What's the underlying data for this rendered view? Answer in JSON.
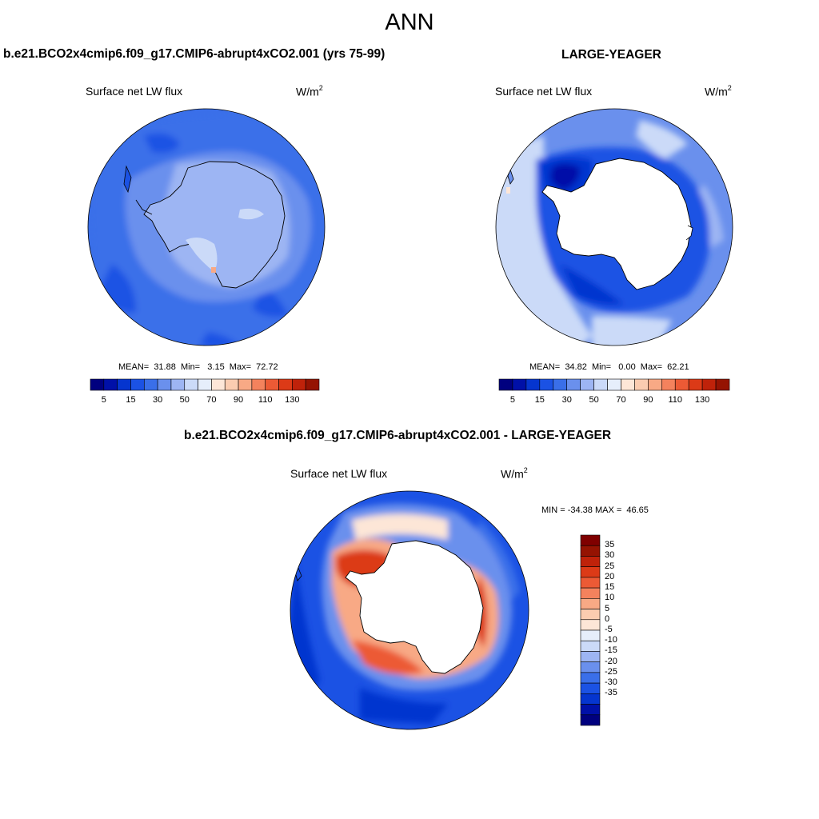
{
  "title": "ANN",
  "colors": {
    "blue_ramp": [
      "#00007f",
      "#0010a8",
      "#0535cf",
      "#1b52e4",
      "#3a6fe9",
      "#6a90ed",
      "#9db5f3",
      "#cbdaf8",
      "#e6eefb"
    ],
    "red_ramp": [
      "#fde6d7",
      "#fbccb0",
      "#f8a985",
      "#f4825d",
      "#ec5a35",
      "#dc3a17",
      "#bf220a",
      "#951302",
      "#7f0000"
    ],
    "land": "#ffffff",
    "outline": "#000000"
  },
  "panels": [
    {
      "id": "model",
      "case_title": "b.e21.BCO2x4cmip6.f09_g17.CMIP6-abrupt4xCO2.001 (yrs 75-99)",
      "variable": "Surface net LW flux",
      "units_base": "W/m",
      "units_sup": "2",
      "stats": "MEAN=  31.88  Min=   3.15  Max=  72.72",
      "colorbar_ticks": [
        "5",
        "15",
        "30",
        "50",
        "70",
        "90",
        "110",
        "130"
      ]
    },
    {
      "id": "obs",
      "case_title": "LARGE-YEAGER",
      "variable": "Surface net LW flux",
      "units_base": "W/m",
      "units_sup": "2",
      "stats": "MEAN=  34.82  Min=   0.00  Max=  62.21",
      "colorbar_ticks": [
        "5",
        "15",
        "30",
        "50",
        "70",
        "90",
        "110",
        "130"
      ]
    },
    {
      "id": "diff",
      "case_title": "b.e21.BCO2x4cmip6.f09_g17.CMIP6-abrupt4xCO2.001 - LARGE-YEAGER",
      "variable": "Surface net LW flux",
      "units_base": "W/m",
      "units_sup": "2",
      "stats": "MIN = -34.38 MAX =  46.65",
      "colorbar_ticks": [
        "35",
        "30",
        "25",
        "20",
        "15",
        "10",
        "5",
        "0",
        "-5",
        "-10",
        "-15",
        "-20",
        "-25",
        "-30",
        "-35"
      ]
    }
  ]
}
